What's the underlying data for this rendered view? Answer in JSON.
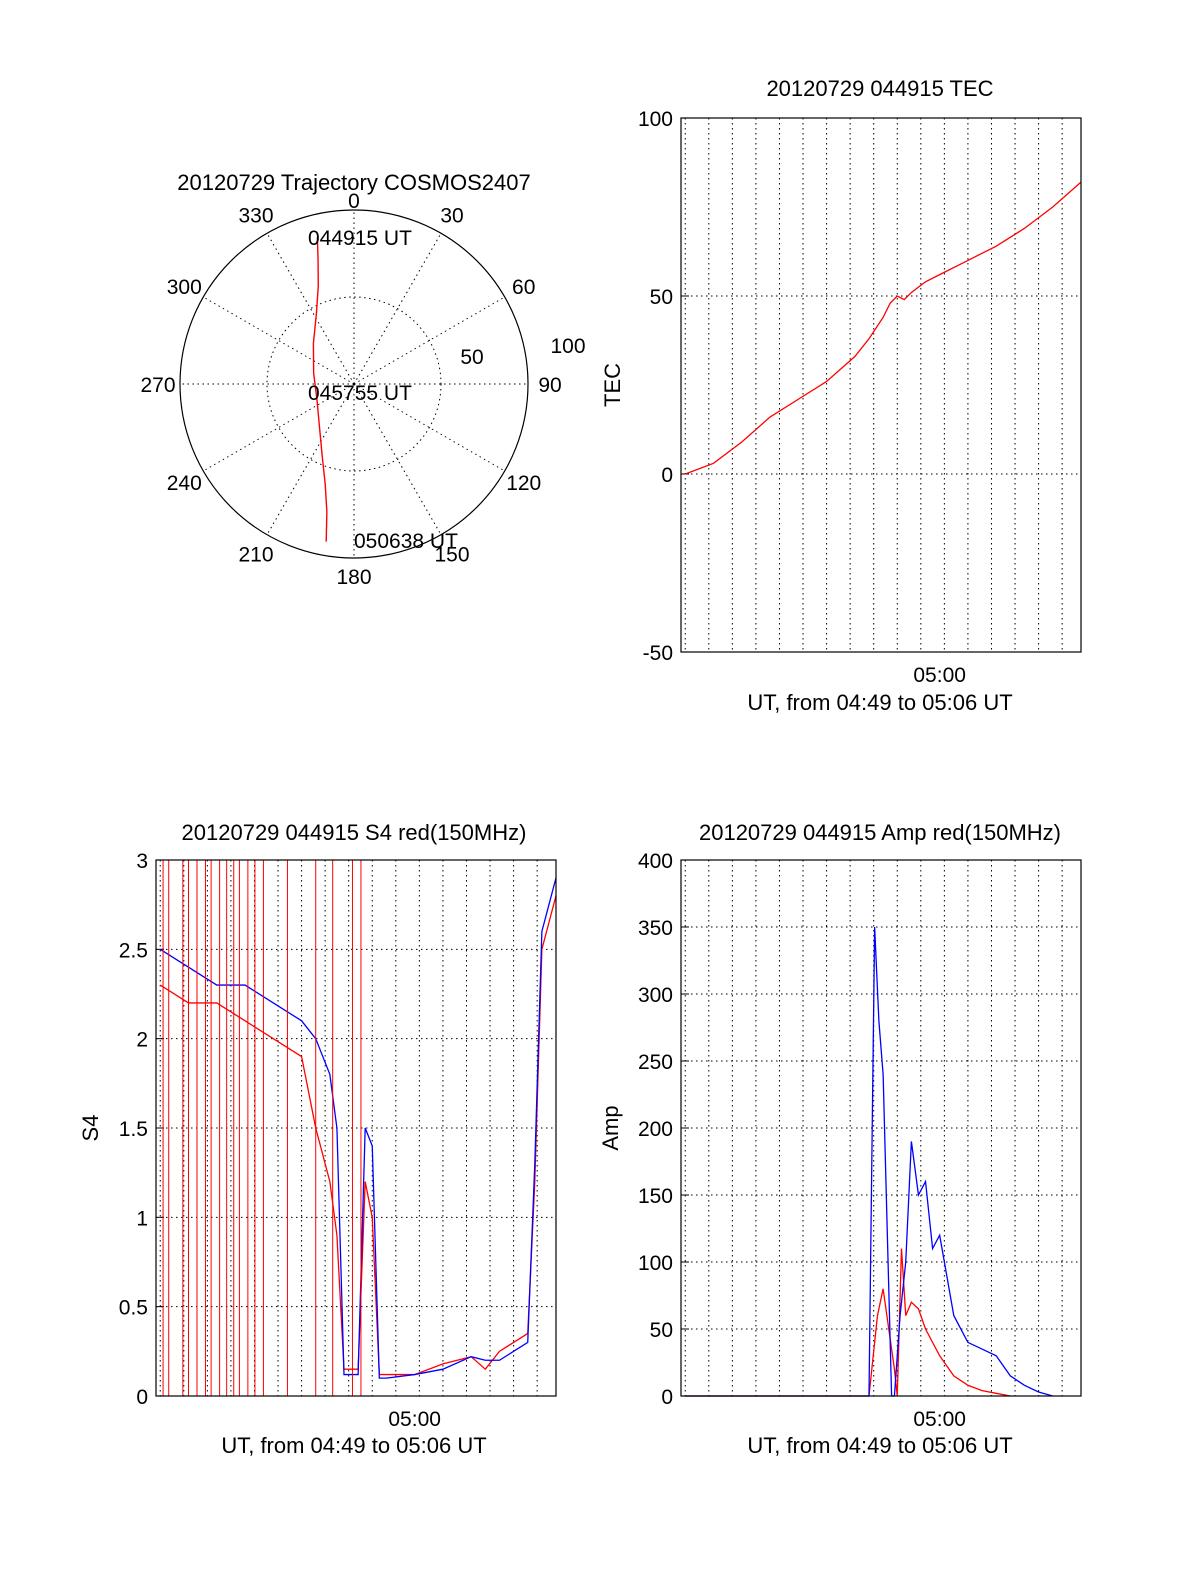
{
  "colors": {
    "red": "#ff0000",
    "blue": "#0000ff",
    "axis": "#000000"
  },
  "chart_data": [
    {
      "id": "trajectory",
      "type": "polar",
      "title": "20120729 Trajectory COSMOS2407",
      "angle_labels": [
        "0",
        "30",
        "60",
        "90",
        "120",
        "150",
        "180",
        "210",
        "240",
        "270",
        "300",
        "330"
      ],
      "radial_labels": [
        "50",
        "100"
      ],
      "rlim": [
        0,
        100
      ],
      "track_labels": [
        "044915 UT",
        "045755 UT",
        "050638 UT"
      ],
      "series": [
        {
          "color": "#ff0000",
          "points": [
            {
              "az": 346,
              "r": 87
            },
            {
              "az": 344,
              "r": 75
            },
            {
              "az": 340,
              "r": 60
            },
            {
              "az": 332,
              "r": 46
            },
            {
              "az": 315,
              "r": 33
            },
            {
              "az": 285,
              "r": 24
            },
            {
              "az": 248,
              "r": 23
            },
            {
              "az": 220,
              "r": 31
            },
            {
              "az": 204,
              "r": 45
            },
            {
              "az": 196,
              "r": 60
            },
            {
              "az": 192,
              "r": 75
            },
            {
              "az": 190,
              "r": 92
            }
          ]
        }
      ]
    },
    {
      "id": "tec",
      "type": "line",
      "title": "20120729 044915 TEC",
      "ylabel": "TEC",
      "xlabel": "UT, from 04:49 to 05:06 UT",
      "xticks": [
        "05:00"
      ],
      "xlim_min": [
        4.817,
        5.1
      ],
      "ylim": [
        -50,
        100
      ],
      "yticks": [
        "-50",
        "0",
        "50",
        "100"
      ],
      "series": [
        {
          "color": "#ff0000",
          "x_min": [
            4.82,
            4.84,
            4.86,
            4.88,
            4.9,
            4.92,
            4.94,
            4.95,
            4.96,
            4.965,
            4.97,
            4.975,
            4.98,
            4.99,
            5.0,
            5.02,
            5.04,
            5.06,
            5.08,
            5.1
          ],
          "y": [
            0,
            3,
            9,
            16,
            21,
            26,
            33,
            38,
            44,
            48,
            50,
            49,
            51,
            54,
            56,
            60,
            64,
            69,
            75,
            82
          ]
        }
      ]
    },
    {
      "id": "s4",
      "type": "line",
      "title": "20120729 044915 S4 red(150MHz)",
      "ylabel": "S4",
      "xlabel": "UT, from 04:49 to 05:06 UT",
      "xticks": [
        "05:00"
      ],
      "xlim_min": [
        4.817,
        5.1
      ],
      "ylim": [
        0,
        3
      ],
      "yticks": [
        "0",
        "0.5",
        "1",
        "1.5",
        "2",
        "2.5",
        "3"
      ],
      "series": [
        {
          "color": "#ff0000",
          "x_min": [
            4.82,
            4.84,
            4.86,
            4.88,
            4.9,
            4.92,
            4.93,
            4.94,
            4.945,
            4.95,
            4.96,
            4.965,
            4.97,
            4.975,
            4.98,
            5.0,
            5.02,
            5.04,
            5.05,
            5.06,
            5.07,
            5.08,
            5.085,
            5.09,
            5.1
          ],
          "y": [
            2.3,
            2.2,
            2.2,
            2.1,
            2.0,
            1.9,
            1.5,
            1.2,
            0.9,
            0.15,
            0.15,
            1.2,
            1.0,
            0.12,
            0.12,
            0.12,
            0.18,
            0.22,
            0.15,
            0.25,
            0.3,
            0.35,
            1.2,
            2.5,
            2.8
          ]
        },
        {
          "color": "#0000ff",
          "x_min": [
            4.82,
            4.84,
            4.86,
            4.88,
            4.9,
            4.92,
            4.93,
            4.94,
            4.945,
            4.95,
            4.96,
            4.965,
            4.97,
            4.975,
            4.98,
            5.0,
            5.02,
            5.04,
            5.05,
            5.06,
            5.07,
            5.08,
            5.085,
            5.09,
            5.1
          ],
          "y": [
            2.5,
            2.4,
            2.3,
            2.3,
            2.2,
            2.1,
            2.0,
            1.8,
            1.5,
            0.12,
            0.12,
            1.5,
            1.4,
            0.1,
            0.1,
            0.12,
            0.15,
            0.22,
            0.2,
            0.2,
            0.25,
            0.3,
            1.3,
            2.6,
            2.9
          ]
        }
      ],
      "red_spike_x_min": [
        4.822,
        4.826,
        4.836,
        4.84,
        4.846,
        4.852,
        4.856,
        4.862,
        4.867,
        4.872,
        4.876,
        4.882,
        4.887,
        4.893,
        4.91,
        4.93,
        4.942,
        4.956,
        4.962
      ]
    },
    {
      "id": "amp",
      "type": "line",
      "title": "20120729 044915 Amp red(150MHz)",
      "ylabel": "Amp",
      "xlabel": "UT, from 04:49 to 05:06 UT",
      "xticks": [
        "05:00"
      ],
      "xlim_min": [
        4.817,
        5.1
      ],
      "ylim": [
        0,
        400
      ],
      "yticks": [
        "0",
        "50",
        "100",
        "150",
        "200",
        "250",
        "300",
        "350",
        "400"
      ],
      "series": [
        {
          "color": "#ff0000",
          "x_min": [
            4.82,
            4.95,
            4.954,
            4.956,
            4.96,
            4.964,
            4.968,
            4.97,
            4.973,
            4.976,
            4.98,
            4.985,
            4.99,
            5.0,
            5.01,
            5.02,
            5.03,
            5.04,
            5.05
          ],
          "y": [
            0,
            0,
            40,
            60,
            80,
            50,
            20,
            0,
            110,
            60,
            70,
            65,
            50,
            30,
            15,
            8,
            4,
            2,
            0
          ]
        },
        {
          "color": "#0000ff",
          "x_min": [
            4.82,
            4.95,
            4.954,
            4.957,
            4.96,
            4.963,
            4.966,
            4.968,
            4.972,
            4.976,
            4.98,
            4.985,
            4.99,
            4.995,
            5.0,
            5.01,
            5.02,
            5.03,
            5.04,
            5.05,
            5.06,
            5.07,
            5.08
          ],
          "y": [
            0,
            0,
            350,
            280,
            240,
            120,
            0,
            0,
            60,
            100,
            190,
            150,
            160,
            110,
            120,
            60,
            40,
            35,
            30,
            15,
            8,
            3,
            0
          ]
        }
      ]
    }
  ]
}
